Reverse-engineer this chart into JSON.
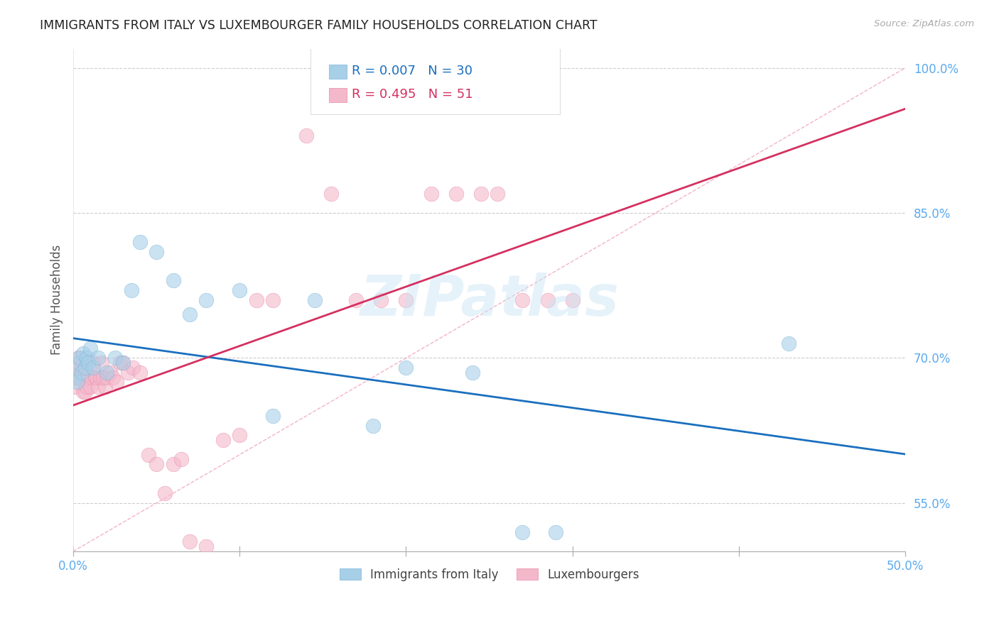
{
  "title": "IMMIGRANTS FROM ITALY VS LUXEMBOURGER FAMILY HOUSEHOLDS CORRELATION CHART",
  "source": "Source: ZipAtlas.com",
  "ylabel": "Family Households",
  "xlim": [
    0.0,
    0.5
  ],
  "ylim": [
    0.5,
    1.02
  ],
  "xticks": [
    0.0,
    0.1,
    0.2,
    0.3,
    0.4,
    0.5
  ],
  "xticklabels": [
    "0.0%",
    "",
    "",
    "",
    "",
    "50.0%"
  ],
  "yticks": [
    0.55,
    0.7,
    0.85,
    1.0
  ],
  "yticklabels": [
    "55.0%",
    "70.0%",
    "85.0%",
    "100.0%"
  ],
  "grid_color": "#cccccc",
  "background_color": "#ffffff",
  "blue_color": "#a8cfe8",
  "pink_color": "#f4b8cb",
  "blue_edge_color": "#7ab5d8",
  "pink_edge_color": "#e888a8",
  "blue_label": "Immigrants from Italy",
  "pink_label": "Luxembourgers",
  "blue_R": "0.007",
  "blue_N": "30",
  "pink_R": "0.495",
  "pink_N": "51",
  "blue_trend_color": "#1a6fbe",
  "pink_trend_color": "#d43060",
  "ref_line_color": "#f0a0b8",
  "tick_label_color": "#5aaaee",
  "watermark": "ZIPatlas",
  "blue_scatter_x": [
    0.001,
    0.002,
    0.003,
    0.004,
    0.005,
    0.006,
    0.007,
    0.008,
    0.009,
    0.01,
    0.012,
    0.015,
    0.02,
    0.025,
    0.03,
    0.035,
    0.04,
    0.05,
    0.06,
    0.07,
    0.08,
    0.1,
    0.12,
    0.145,
    0.18,
    0.2,
    0.24,
    0.27,
    0.29,
    0.43
  ],
  "blue_scatter_y": [
    0.68,
    0.675,
    0.695,
    0.7,
    0.685,
    0.705,
    0.69,
    0.7,
    0.695,
    0.71,
    0.69,
    0.7,
    0.685,
    0.7,
    0.695,
    0.77,
    0.82,
    0.81,
    0.78,
    0.745,
    0.76,
    0.77,
    0.64,
    0.76,
    0.63,
    0.69,
    0.685,
    0.52,
    0.52,
    0.715
  ],
  "pink_scatter_x": [
    0.001,
    0.002,
    0.003,
    0.004,
    0.005,
    0.006,
    0.007,
    0.008,
    0.009,
    0.01,
    0.011,
    0.012,
    0.013,
    0.014,
    0.015,
    0.016,
    0.017,
    0.018,
    0.019,
    0.02,
    0.022,
    0.024,
    0.026,
    0.028,
    0.03,
    0.033,
    0.036,
    0.04,
    0.045,
    0.05,
    0.055,
    0.06,
    0.065,
    0.07,
    0.08,
    0.09,
    0.1,
    0.11,
    0.12,
    0.14,
    0.155,
    0.17,
    0.185,
    0.2,
    0.215,
    0.23,
    0.245,
    0.255,
    0.27,
    0.285,
    0.3
  ],
  "pink_scatter_y": [
    0.67,
    0.69,
    0.7,
    0.68,
    0.69,
    0.665,
    0.665,
    0.67,
    0.68,
    0.67,
    0.68,
    0.695,
    0.68,
    0.68,
    0.67,
    0.68,
    0.695,
    0.68,
    0.67,
    0.68,
    0.685,
    0.68,
    0.675,
    0.695,
    0.695,
    0.685,
    0.69,
    0.685,
    0.6,
    0.59,
    0.56,
    0.59,
    0.595,
    0.51,
    0.505,
    0.615,
    0.62,
    0.76,
    0.76,
    0.93,
    0.87,
    0.76,
    0.76,
    0.76,
    0.87,
    0.87,
    0.87,
    0.87,
    0.76,
    0.76,
    0.76
  ]
}
